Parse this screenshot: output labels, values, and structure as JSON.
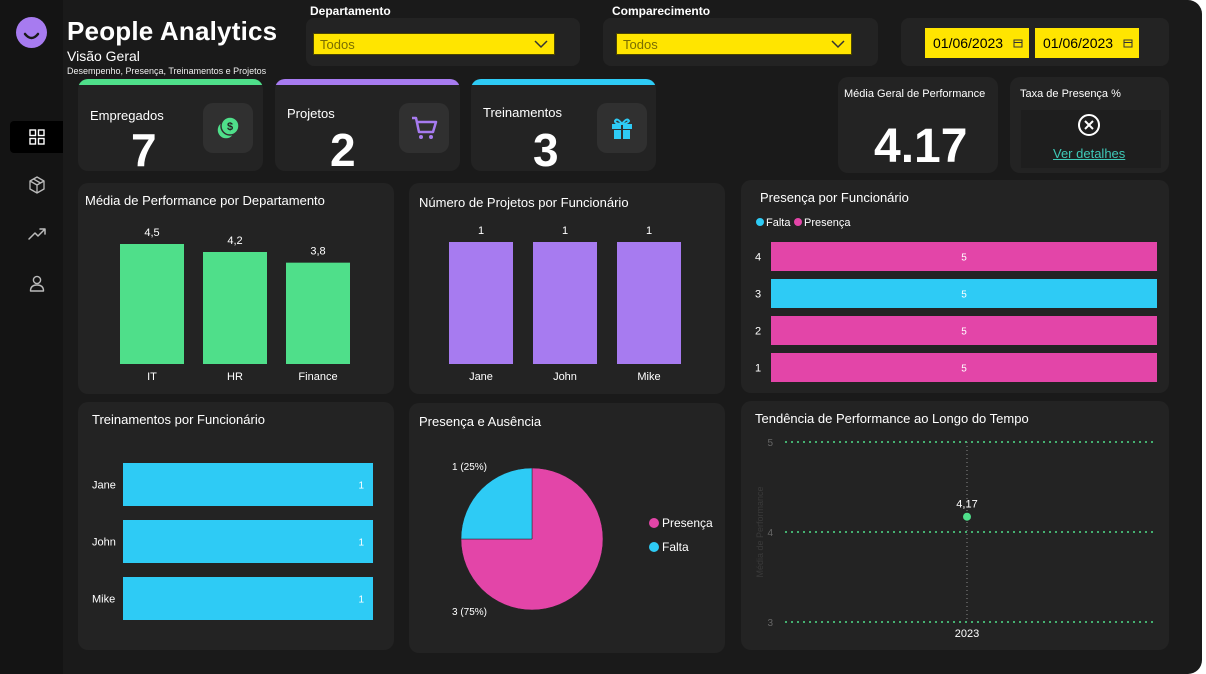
{
  "header": {
    "title": "People Analytics",
    "subtitle": "Visão Geral",
    "description": "Desempenho, Presença, Treinamentos e Projetos"
  },
  "filters": {
    "department": {
      "label": "Departamento",
      "value": "Todos"
    },
    "attendance": {
      "label": "Comparecimento",
      "value": "Todos"
    },
    "date_start": "01/06/2023",
    "date_end": "01/06/2023"
  },
  "sidebar": {
    "items": [
      {
        "name": "dashboard",
        "icon": "grid-icon",
        "active": true
      },
      {
        "name": "projects",
        "icon": "box-icon",
        "active": false
      },
      {
        "name": "trends",
        "icon": "trending-up-icon",
        "active": false
      },
      {
        "name": "people",
        "icon": "user-icon",
        "active": false
      }
    ]
  },
  "kpis": {
    "employees": {
      "label": "Empregados",
      "value": "7",
      "icon": "money-icon",
      "color": "#4fdf8a"
    },
    "projects": {
      "label": "Projetos",
      "value": "2",
      "icon": "cart-icon",
      "color": "#a77bf0"
    },
    "trainings": {
      "label": "Treinamentos",
      "value": "3",
      "icon": "gift-icon",
      "color": "#2ecbf5"
    },
    "performance": {
      "label": "Média Geral de Performance",
      "value": "4.17"
    },
    "attendance_rate": {
      "label": "Taxa de Presença %",
      "link": "Ver detalhes",
      "icon": "error-circle-icon"
    }
  },
  "colors": {
    "green": "#4fdf8a",
    "purple": "#a77bf0",
    "cyan": "#2ecbf5",
    "pink": "#e345a8",
    "yellow": "#ffe500",
    "background": "#1a1a1a",
    "card": "#232323"
  },
  "chart_data": [
    {
      "id": "perf_by_dept",
      "type": "bar",
      "title": "Média de Performance por Departamento",
      "categories": [
        "IT",
        "HR",
        "Finance"
      ],
      "values": [
        4.5,
        4.2,
        3.8
      ],
      "value_labels": [
        "4,5",
        "4,2",
        "3,8"
      ],
      "color": "#4fdf8a"
    },
    {
      "id": "projects_per_employee",
      "type": "bar",
      "title": "Número de Projetos por Funcionário",
      "categories": [
        "Jane",
        "John",
        "Mike"
      ],
      "values": [
        1,
        1,
        1
      ],
      "value_labels": [
        "1",
        "1",
        "1"
      ],
      "color": "#a77bf0"
    },
    {
      "id": "attendance_per_employee",
      "type": "bar",
      "orientation": "horizontal",
      "title": "Presença por Funcionário",
      "legend": [
        {
          "name": "Falta",
          "color": "#2ecbf5"
        },
        {
          "name": "Presença",
          "color": "#e345a8"
        }
      ],
      "categories": [
        "4",
        "3",
        "2",
        "1"
      ],
      "values": [
        5,
        5,
        5,
        5
      ],
      "value_labels": [
        "5",
        "5",
        "5",
        "5"
      ],
      "series_by_row": [
        "Presença",
        "Falta",
        "Presença",
        "Presença"
      ]
    },
    {
      "id": "trainings_per_employee",
      "type": "bar",
      "orientation": "horizontal",
      "title": "Treinamentos por Funcionário",
      "categories": [
        "Jane",
        "John",
        "Mike"
      ],
      "values": [
        1,
        1,
        1
      ],
      "value_labels": [
        "1",
        "1",
        "1"
      ],
      "color": "#2ecbf5"
    },
    {
      "id": "presence_absence",
      "type": "pie",
      "title": "Presença e Ausência",
      "slices": [
        {
          "name": "Presença",
          "value": 3,
          "label": "3 (75%)",
          "color": "#e345a8"
        },
        {
          "name": "Falta",
          "value": 1,
          "label": "1 (25%)",
          "color": "#2ecbf5"
        }
      ]
    },
    {
      "id": "performance_trend",
      "type": "line",
      "title": "Tendência de Performance ao Longo do Tempo",
      "ylabel": "Média de Performance",
      "x": [
        "2023"
      ],
      "y": [
        4.17
      ],
      "point_label": "4,17",
      "ylim": [
        3,
        5
      ],
      "yticks": [
        "5",
        "4",
        "3"
      ],
      "grid": true,
      "color": "#4fdf8a"
    }
  ]
}
